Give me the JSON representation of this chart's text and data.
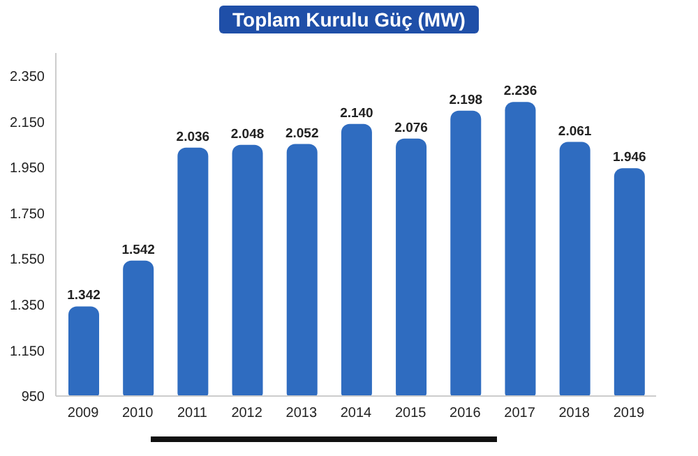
{
  "chart_data": {
    "type": "bar",
    "title": "Toplam Kurulu Güç (MW)",
    "categories": [
      "2009",
      "2010",
      "2011",
      "2012",
      "2013",
      "2014",
      "2015",
      "2016",
      "2017",
      "2018",
      "2019"
    ],
    "values": [
      1342,
      1542,
      2036,
      2048,
      2052,
      2140,
      2076,
      2198,
      2236,
      2061,
      1946
    ],
    "value_labels": [
      "1.342",
      "1.542",
      "2.036",
      "2.048",
      "2.052",
      "2.140",
      "2.076",
      "2.198",
      "2.236",
      "2.061",
      "1.946"
    ],
    "color": "#2f6cc0",
    "ylim": [
      950,
      2450
    ],
    "yticks": [
      950,
      {
        "value": 1150,
        "label": "1.150"
      },
      {
        "value": 1350,
        "label": "1.350"
      },
      {
        "value": 1550,
        "label": "1.550"
      },
      {
        "value": 1750,
        "label": "1.750"
      },
      {
        "value": 1950,
        "label": "1.950"
      },
      {
        "value": 2150,
        "label": "2.150"
      },
      {
        "value": 2350,
        "label": "2.350"
      }
    ],
    "grid": false
  }
}
